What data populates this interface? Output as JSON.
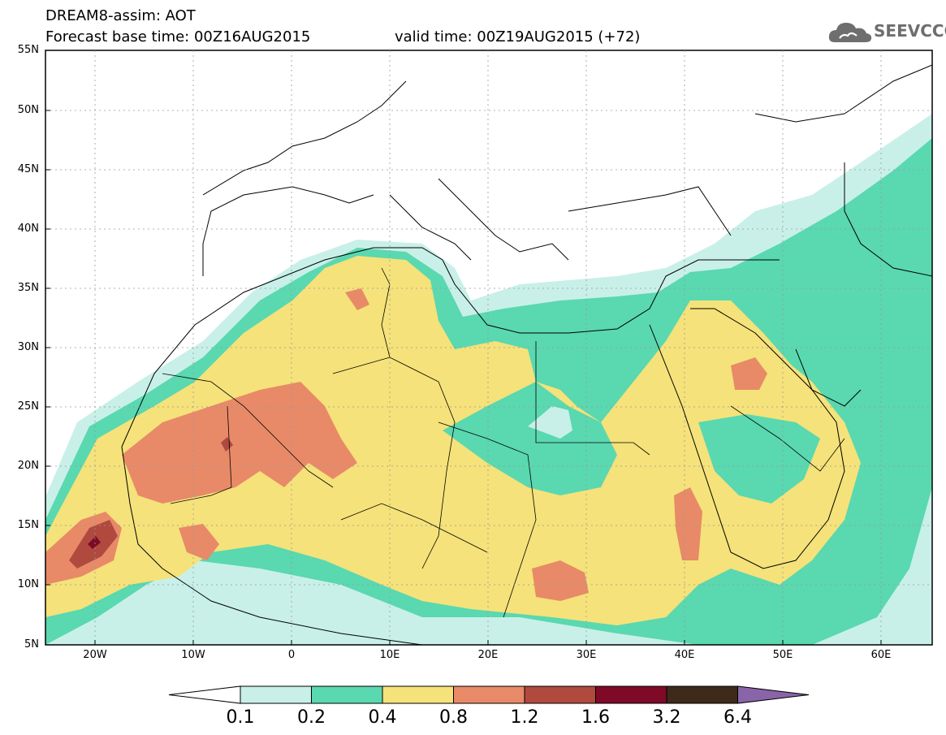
{
  "header": {
    "title": "DREAM8-assim: AOT",
    "base_time": "Forecast base time: 00Z16AUG2015",
    "valid_time": "valid time: 00Z19AUG2015 (+72)"
  },
  "logo": {
    "text": "SEEVCCC",
    "icon": "cloud-icon"
  },
  "map": {
    "lat_labels": [
      "55N",
      "50N",
      "45N",
      "40N",
      "35N",
      "30N",
      "25N",
      "20N",
      "15N",
      "10N",
      "5N"
    ],
    "lon_labels": [
      "20W",
      "10W",
      "0",
      "10E",
      "20E",
      "30E",
      "40E",
      "50E",
      "60E"
    ]
  },
  "colorbar": {
    "thresholds": [
      "0.1",
      "0.2",
      "0.4",
      "0.8",
      "1.2",
      "1.6",
      "3.2",
      "6.4"
    ],
    "colors": [
      "#ffffff",
      "#c8f0e8",
      "#5ad8b0",
      "#f5e27a",
      "#e88a68",
      "#b04a3e",
      "#7e0a28",
      "#3e2a1a",
      "#8a64a8"
    ]
  }
}
